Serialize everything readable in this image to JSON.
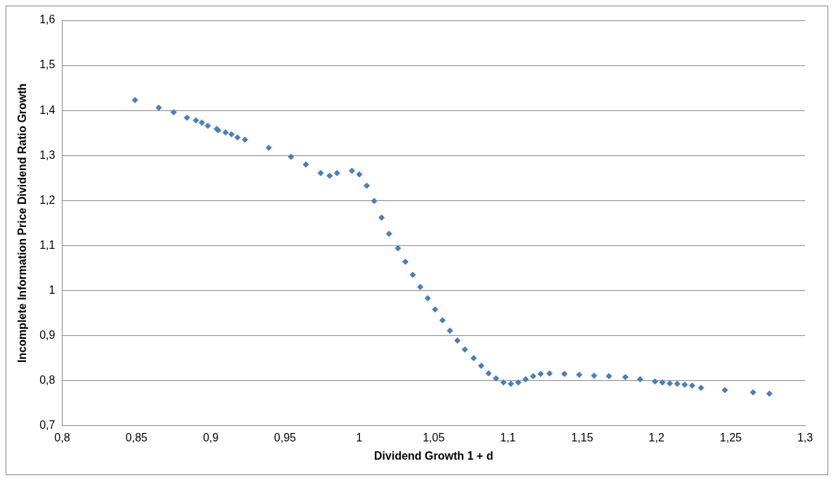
{
  "chart_data": {
    "type": "scatter",
    "xlabel": "Dividend Growth 1 + d",
    "ylabel": "Incomplete Information Price Dividend Ratio Growth",
    "xlim": [
      0.8,
      1.3
    ],
    "ylim": [
      0.7,
      1.6
    ],
    "xticks": [
      {
        "value": 0.8,
        "label": "0,8"
      },
      {
        "value": 0.85,
        "label": "0,85"
      },
      {
        "value": 0.9,
        "label": "0,9"
      },
      {
        "value": 0.95,
        "label": "0,95"
      },
      1,
      {
        "value": 1.05,
        "label": "1,05"
      },
      {
        "value": 1.1,
        "label": "1,1"
      },
      {
        "value": 1.15,
        "label": "1,15"
      },
      {
        "value": 1.2,
        "label": "1,2"
      },
      {
        "value": 1.25,
        "label": "1,25"
      },
      {
        "value": 1.3,
        "label": "1,3"
      }
    ],
    "yticks": [
      {
        "value": 0.7,
        "label": "0,7"
      },
      {
        "value": 0.8,
        "label": "0,8"
      },
      {
        "value": 0.9,
        "label": "0,9"
      },
      1,
      {
        "value": 1.1,
        "label": "1,1"
      },
      {
        "value": 1.2,
        "label": "1,2"
      },
      {
        "value": 1.3,
        "label": "1,3"
      },
      {
        "value": 1.4,
        "label": "1,4"
      },
      {
        "value": 1.5,
        "label": "1,5"
      },
      {
        "value": 1.6,
        "label": "1,6"
      }
    ],
    "grid": "y",
    "legend": false,
    "marker": "diamond",
    "series": [
      {
        "color": "#4a7ebb",
        "x": [
          0.849,
          0.865,
          0.875,
          0.884,
          0.89,
          0.894,
          0.898,
          0.904,
          0.905,
          0.91,
          0.914,
          0.918,
          0.923,
          0.939,
          0.954,
          0.964,
          0.974,
          0.98,
          0.985,
          0.995,
          1.0,
          1.005,
          1.01,
          1.015,
          1.02,
          1.026,
          1.031,
          1.036,
          1.041,
          1.046,
          1.051,
          1.056,
          1.061,
          1.066,
          1.071,
          1.077,
          1.082,
          1.087,
          1.092,
          1.097,
          1.102,
          1.107,
          1.112,
          1.117,
          1.122,
          1.128,
          1.138,
          1.148,
          1.158,
          1.168,
          1.179,
          1.189,
          1.199,
          1.204,
          1.209,
          1.214,
          1.219,
          1.224,
          1.23,
          1.246,
          1.265,
          1.276
        ],
        "values": [
          1.423,
          1.406,
          1.396,
          1.384,
          1.378,
          1.373,
          1.366,
          1.359,
          1.356,
          1.351,
          1.347,
          1.34,
          1.335,
          1.317,
          1.297,
          1.28,
          1.261,
          1.255,
          1.261,
          1.266,
          1.258,
          1.233,
          1.199,
          1.162,
          1.126,
          1.094,
          1.064,
          1.035,
          1.008,
          0.983,
          0.958,
          0.934,
          0.911,
          0.889,
          0.869,
          0.85,
          0.833,
          0.816,
          0.805,
          0.796,
          0.793,
          0.796,
          0.803,
          0.81,
          0.815,
          0.816,
          0.815,
          0.813,
          0.811,
          0.81,
          0.808,
          0.803,
          0.798,
          0.796,
          0.794,
          0.793,
          0.791,
          0.789,
          0.784,
          0.779,
          0.774,
          0.771
        ]
      }
    ]
  }
}
